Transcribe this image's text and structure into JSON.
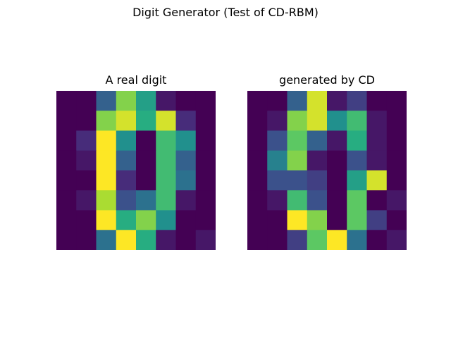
{
  "figure": {
    "suptitle": "Digit Generator (Test of CD-RBM)"
  },
  "chart_data": [
    {
      "type": "heatmap",
      "title": "A real digit",
      "colormap": "viridis",
      "vmin": 0,
      "vmax": 16,
      "rows": 8,
      "cols": 8,
      "values": [
        [
          0,
          0,
          5,
          13,
          9,
          1,
          0,
          0
        ],
        [
          0,
          0,
          13,
          15,
          10,
          15,
          2,
          0
        ],
        [
          0,
          2,
          16,
          8,
          0,
          11,
          8,
          0
        ],
        [
          0,
          1,
          16,
          5,
          0,
          11,
          5,
          0
        ],
        [
          0,
          0,
          16,
          2,
          0,
          11,
          6,
          0
        ],
        [
          0,
          1,
          14,
          4,
          6,
          11,
          1,
          0
        ],
        [
          0,
          0,
          16,
          10,
          13,
          8,
          0,
          0
        ],
        [
          0,
          0,
          6,
          16,
          10,
          1,
          0,
          1
        ]
      ]
    },
    {
      "type": "heatmap",
      "title": "generated by CD",
      "colormap": "viridis",
      "vmin": 0,
      "vmax": 16,
      "rows": 8,
      "cols": 8,
      "values": [
        [
          0,
          0,
          5,
          15,
          1,
          3,
          0,
          0
        ],
        [
          0,
          1,
          13,
          15,
          8,
          11,
          1,
          0
        ],
        [
          0,
          4,
          12,
          5,
          1,
          10,
          1,
          0
        ],
        [
          0,
          7,
          13,
          1,
          0,
          4,
          1,
          0
        ],
        [
          0,
          4,
          4,
          3,
          0,
          9,
          15,
          0
        ],
        [
          0,
          1,
          11,
          4,
          0,
          12,
          0,
          1
        ],
        [
          0,
          0,
          16,
          13,
          0,
          12,
          3,
          0
        ],
        [
          0,
          0,
          3,
          12,
          16,
          6,
          0,
          1
        ]
      ]
    }
  ]
}
